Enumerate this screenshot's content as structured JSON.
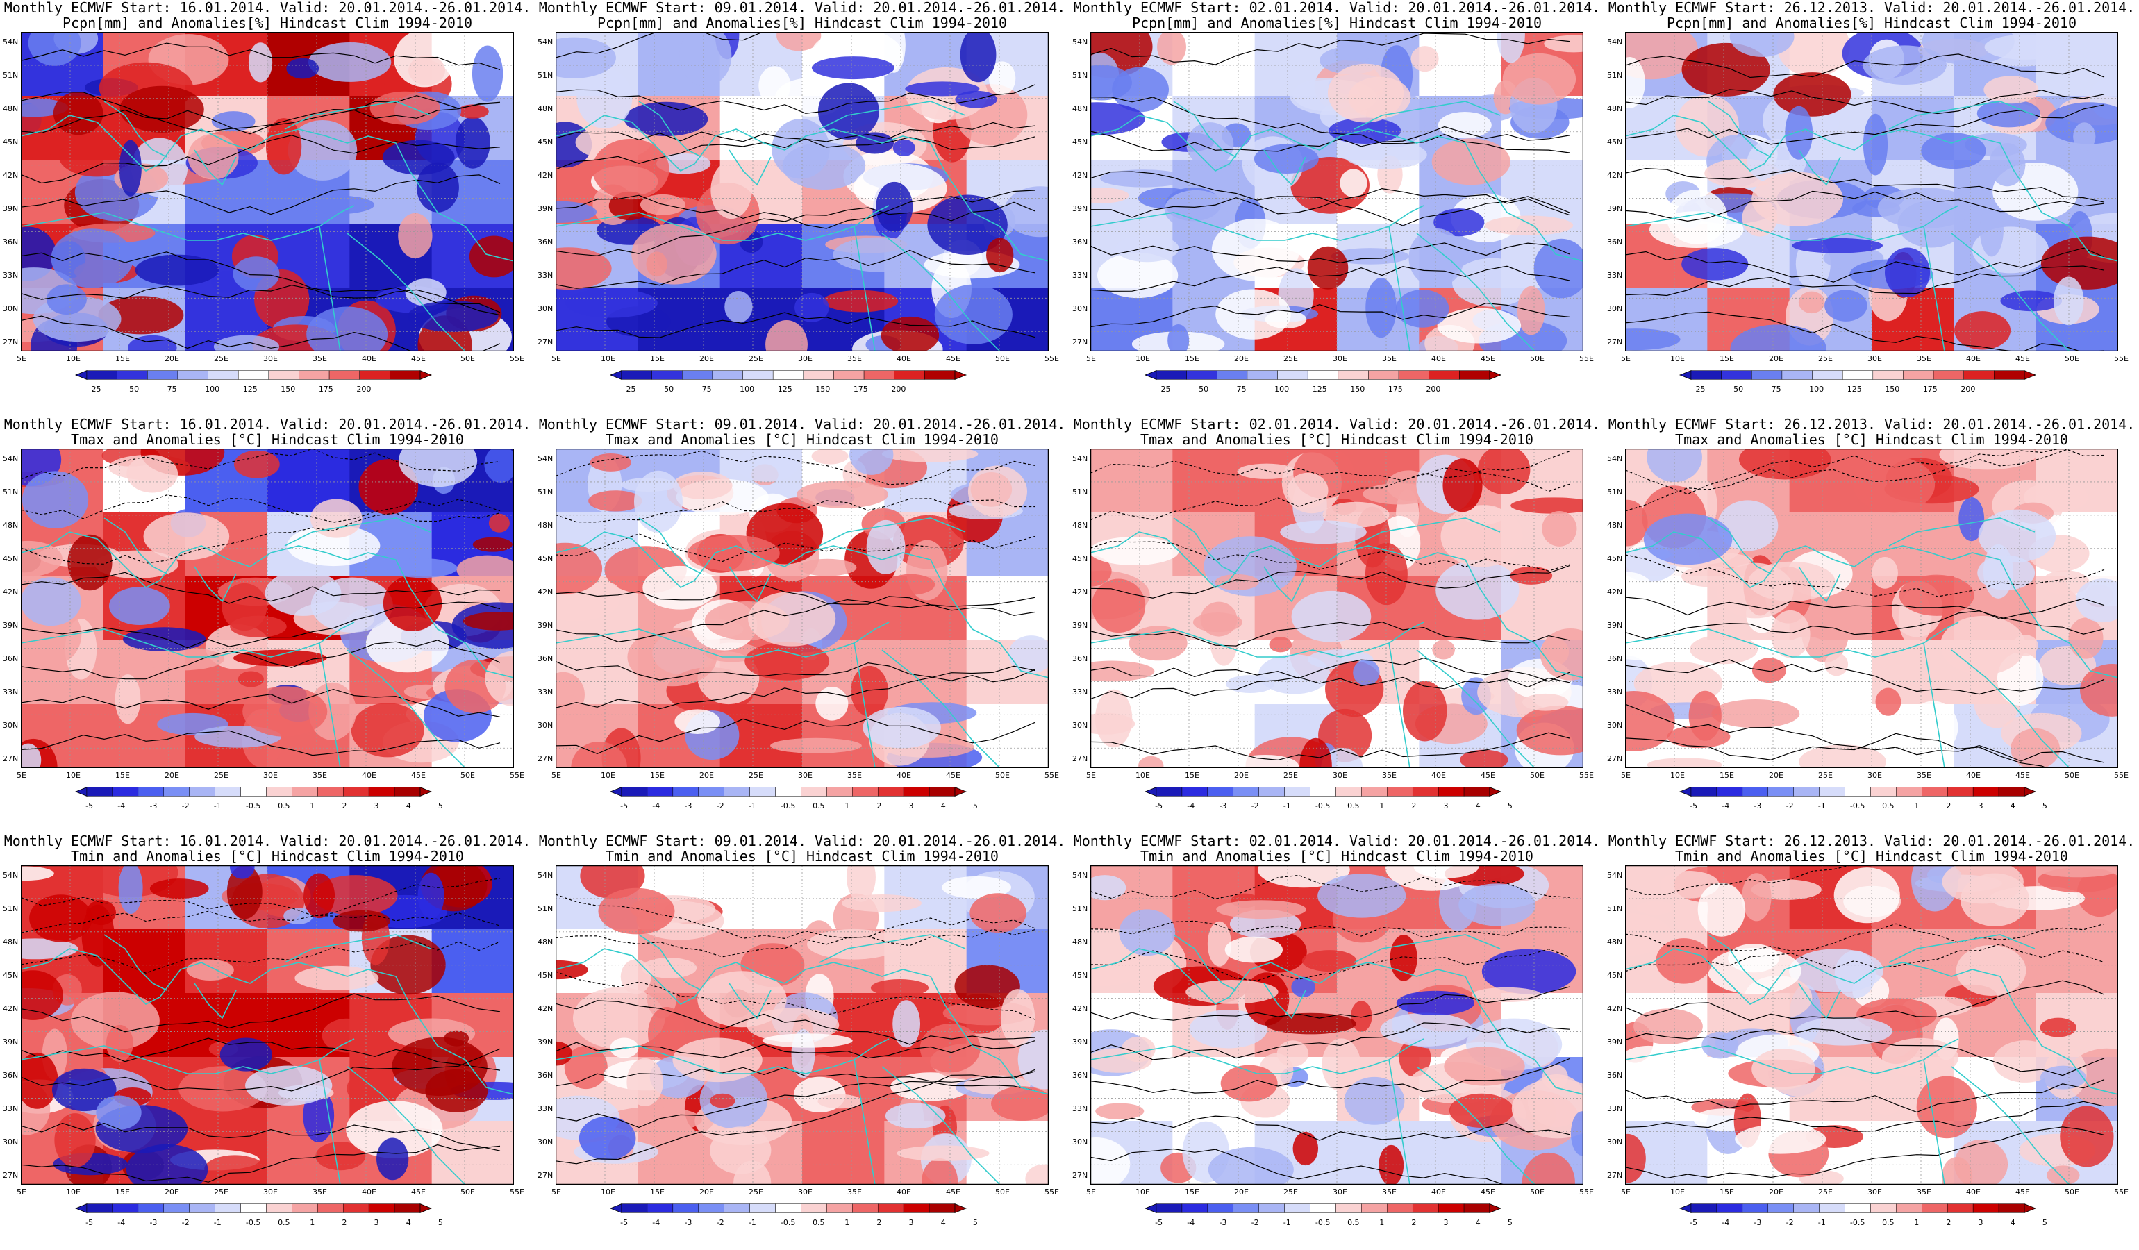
{
  "panels": [
    {
      "title1": "Monthly ECMWF Start: 16.01.2014. Valid: 20.01.2014.-26.01.2014.",
      "title2": "Pcpn[mm] and Anomalies[%] Hindcast Clim 1994-2010",
      "var": "pcpn",
      "row": 0,
      "col": 0
    },
    {
      "title1": "Monthly ECMWF Start: 09.01.2014. Valid: 20.01.2014.-26.01.2014.",
      "title2": "Pcpn[mm] and Anomalies[%] Hindcast Clim 1994-2010",
      "var": "pcpn",
      "row": 0,
      "col": 1
    },
    {
      "title1": "Monthly ECMWF Start: 02.01.2014. Valid: 20.01.2014.-26.01.2014.",
      "title2": "Pcpn[mm] and Anomalies[%] Hindcast Clim 1994-2010",
      "var": "pcpn",
      "row": 0,
      "col": 2
    },
    {
      "title1": "Monthly ECMWF Start: 26.12.2013. Valid: 20.01.2014.-26.01.2014.",
      "title2": "Pcpn[mm] and Anomalies[%] Hindcast Clim 1994-2010",
      "var": "pcpn",
      "row": 0,
      "col": 3
    },
    {
      "title1": "Monthly ECMWF Start: 16.01.2014. Valid: 20.01.2014.-26.01.2014.",
      "title2": "Tmax and Anomalies [°C] Hindcast Clim 1994-2010",
      "var": "temp",
      "row": 1,
      "col": 0
    },
    {
      "title1": "Monthly ECMWF Start: 09.01.2014. Valid: 20.01.2014.-26.01.2014.",
      "title2": "Tmax and Anomalies [°C] Hindcast Clim 1994-2010",
      "var": "temp",
      "row": 1,
      "col": 1
    },
    {
      "title1": "Monthly ECMWF Start: 02.01.2014. Valid: 20.01.2014.-26.01.2014.",
      "title2": "Tmax and Anomalies [°C] Hindcast Clim 1994-2010",
      "var": "temp",
      "row": 1,
      "col": 2
    },
    {
      "title1": "Monthly ECMWF Start: 26.12.2013. Valid: 20.01.2014.-26.01.2014.",
      "title2": "Tmax and Anomalies [°C] Hindcast Clim 1994-2010",
      "var": "temp",
      "row": 1,
      "col": 3
    },
    {
      "title1": "Monthly ECMWF Start: 16.01.2014. Valid: 20.01.2014.-26.01.2014.",
      "title2": "Tmin and Anomalies [°C] Hindcast Clim 1994-2010",
      "var": "temp",
      "row": 2,
      "col": 0
    },
    {
      "title1": "Monthly ECMWF Start: 09.01.2014. Valid: 20.01.2014.-26.01.2014.",
      "title2": "Tmin and Anomalies [°C] Hindcast Clim 1994-2010",
      "var": "temp",
      "row": 2,
      "col": 1
    },
    {
      "title1": "Monthly ECMWF Start: 02.01.2014. Valid: 20.01.2014.-26.01.2014.",
      "title2": "Tmin and Anomalies [°C] Hindcast Clim 1994-2010",
      "var": "temp",
      "row": 2,
      "col": 2
    },
    {
      "title1": "Monthly ECMWF Start: 26.12.2013. Valid: 20.01.2014.-26.01.2014.",
      "title2": "Tmin and Anomalies [°C] Hindcast Clim 1994-2010",
      "var": "temp",
      "row": 2,
      "col": 3
    }
  ],
  "lat_labels": [
    "54N",
    "51N",
    "48N",
    "45N",
    "42N",
    "39N",
    "36N",
    "33N",
    "30N",
    "27N"
  ],
  "lon_labels": [
    "5E",
    "10E",
    "15E",
    "20E",
    "25E",
    "30E",
    "35E",
    "40E",
    "45E",
    "50E",
    "55E"
  ],
  "colorbars": {
    "pcpn": {
      "labels": [
        "25",
        "50",
        "75",
        "100",
        "125",
        "150",
        "175",
        "200"
      ],
      "colors": [
        "#1a1ab8",
        "#3333dd",
        "#6a7ff0",
        "#a9b5f5",
        "#d6dcfa",
        "#ffffff",
        "#fad2d2",
        "#f5a3a3",
        "#ee6666",
        "#dd2222",
        "#b00000"
      ]
    },
    "temp": {
      "labels": [
        "-5",
        "-4",
        "-3",
        "-2",
        "-1",
        "-0.5",
        "0.5",
        "1",
        "2",
        "3",
        "4",
        "5"
      ],
      "colors": [
        "#1a1ab8",
        "#2b2be0",
        "#4b5ff0",
        "#7a8ff5",
        "#a9b5f5",
        "#d6dcfa",
        "#ffffff",
        "#fad2d2",
        "#f5a3a3",
        "#ee6666",
        "#e23232",
        "#cc0000",
        "#a80000"
      ]
    }
  },
  "colors": {
    "coast": "#33cccc",
    "contour": "#000000"
  }
}
